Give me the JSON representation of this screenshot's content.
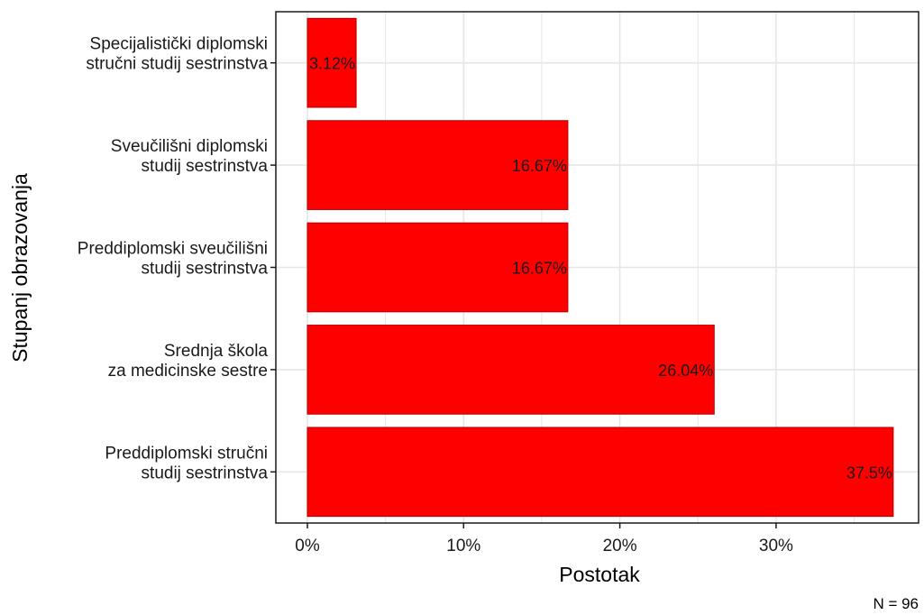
{
  "chart_data": {
    "type": "bar",
    "orientation": "horizontal",
    "categories": [
      [
        "Specijalistički diplomski",
        "stručni studij sestrinstva"
      ],
      [
        "Sveučilišni diplomski",
        "studij sestrinstva"
      ],
      [
        "Preddiplomski sveučilišni",
        "studij sestrinstva"
      ],
      [
        "Srednja škola",
        "za medicinske sestre"
      ],
      [
        "Preddiplomski stručni",
        "studij sestrinstva"
      ]
    ],
    "values": [
      3.12,
      16.67,
      16.67,
      26.04,
      37.5
    ],
    "data_labels": [
      "3.12%",
      "16.67%",
      "16.67%",
      "26.04%",
      "37.5%"
    ],
    "xlabel": "Postotak",
    "ylabel": "Stupanj obrazovanja",
    "xlim": [
      0,
      39
    ],
    "xticks": [
      0,
      10,
      20,
      30
    ],
    "xtick_labels": [
      "0%",
      "10%",
      "20%",
      "30%"
    ],
    "grid": true,
    "bar_color": "#ff0000",
    "bar_edge_color": "#b30000",
    "caption": "N = 96"
  }
}
